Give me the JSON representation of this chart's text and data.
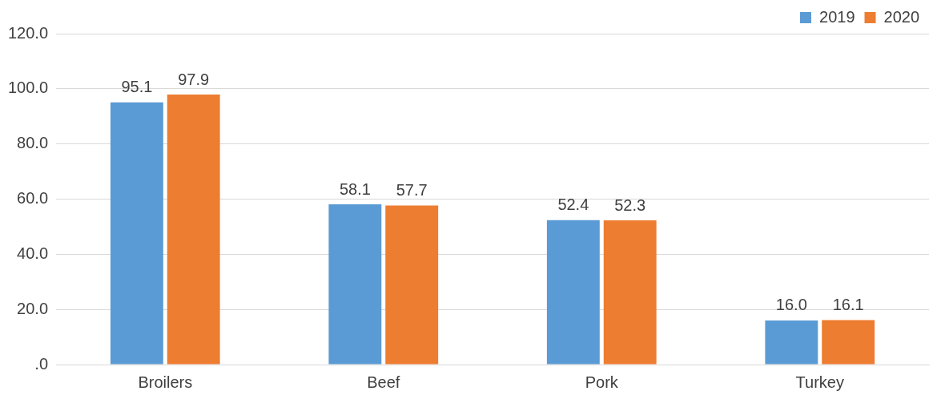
{
  "chart_data": {
    "type": "bar",
    "categories": [
      "Broilers",
      "Beef",
      "Pork",
      "Turkey"
    ],
    "series": [
      {
        "name": "2019",
        "color": "#5b9bd5",
        "values": [
          95.1,
          58.1,
          52.4,
          16.0
        ],
        "value_labels": [
          "95.1",
          "58.1",
          "52.4",
          "16.0"
        ]
      },
      {
        "name": "2020",
        "color": "#ed7d31",
        "values": [
          97.9,
          57.7,
          52.3,
          16.1
        ],
        "value_labels": [
          "97.9",
          "57.7",
          "52.3",
          "16.1"
        ]
      }
    ],
    "ylim": [
      0,
      120
    ],
    "yticks": [
      {
        "value": 0,
        "label": ".0"
      },
      {
        "value": 20,
        "label": "20.0"
      },
      {
        "value": 40,
        "label": "40.0"
      },
      {
        "value": 60,
        "label": "60.0"
      },
      {
        "value": 80,
        "label": "80.0"
      },
      {
        "value": 100,
        "label": "100.0"
      },
      {
        "value": 120,
        "label": "120.0"
      }
    ],
    "grid": "y",
    "legend": "top right"
  }
}
